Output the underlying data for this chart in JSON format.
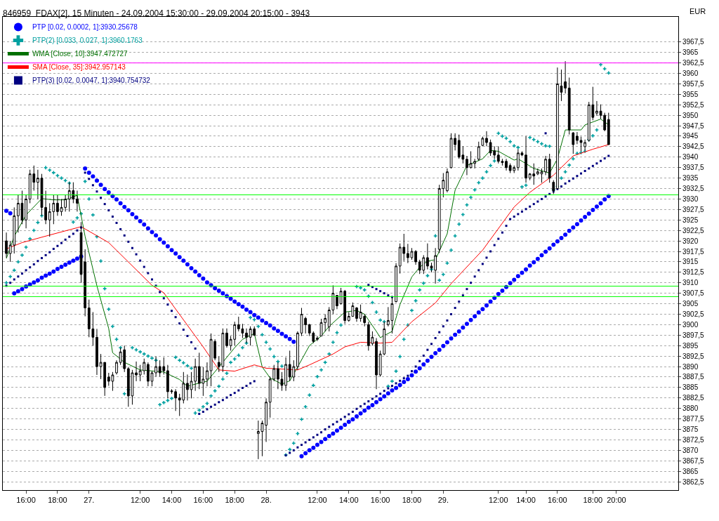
{
  "chart_data": {
    "type": "candlestick",
    "title": "846959  FDAX[2], 15 Minuten - 24.09.2004 15:30:00 - 29.09.2004 20:15:00 - 3943",
    "ylabel": "EUR",
    "color": "#000000",
    "categories": [
      null,
      null,
      null,
      null,
      null,
      "16:00",
      null,
      null,
      null,
      null,
      null,
      null,
      null,
      "18:00",
      null,
      null,
      null,
      null,
      null,
      null,
      null,
      "27.",
      null,
      null,
      null,
      null,
      null,
      null,
      null,
      null,
      null,
      null,
      null,
      null,
      "12:00",
      null,
      null,
      null,
      null,
      null,
      null,
      null,
      "14:00",
      null,
      null,
      null,
      null,
      null,
      null,
      null,
      "16:00",
      null,
      null,
      null,
      null,
      null,
      null,
      null,
      "18:00",
      null,
      null,
      null,
      null,
      null,
      null,
      null,
      "28.",
      null,
      null,
      null,
      null,
      null,
      null,
      null,
      null,
      null,
      null,
      null,
      null,
      "12:00",
      null,
      null,
      null,
      null,
      null,
      null,
      null,
      "14:00",
      null,
      null,
      null,
      null,
      null,
      null,
      null,
      "16:00",
      null,
      null,
      null,
      null,
      null,
      null,
      null,
      "18:00",
      null,
      null,
      null,
      null,
      null,
      null,
      null,
      "29.",
      null,
      null,
      null,
      null,
      null,
      null,
      null,
      null,
      null,
      null,
      null,
      null,
      null,
      "12:00",
      null,
      null,
      null,
      null,
      null,
      null,
      "14:00",
      null,
      null,
      null,
      null,
      null,
      null,
      null,
      "16:00",
      null,
      null,
      null,
      null,
      null,
      null,
      null,
      null,
      "18:00",
      null,
      null,
      null,
      null,
      null,
      "20:00",
      null,
      null,
      null,
      null,
      null,
      null,
      null,
      null,
      null,
      null,
      null,
      null,
      null,
      null,
      null
    ],
    "ohlc": [
      [
        3920,
        3922,
        3916,
        3917
      ],
      [
        3917,
        3920,
        3915,
        3919
      ],
      [
        3919,
        3928,
        3917,
        3926
      ],
      [
        3926,
        3931,
        3922,
        3929
      ],
      [
        3929,
        3932,
        3924,
        3925
      ],
      [
        3925,
        3931,
        3923,
        3930
      ],
      [
        3930,
        3937,
        3929,
        3936
      ],
      [
        3936,
        3938,
        3932,
        3934
      ],
      [
        3934,
        3937,
        3930,
        3935
      ],
      [
        3935,
        3936,
        3926,
        3928
      ],
      [
        3928,
        3932,
        3924,
        3925
      ],
      [
        3925,
        3929,
        3921,
        3927
      ],
      [
        3927,
        3931,
        3924,
        3929
      ],
      [
        3929,
        3931,
        3926,
        3927
      ],
      [
        3927,
        3930,
        3926,
        3928
      ],
      [
        3928,
        3931,
        3927,
        3930
      ],
      [
        3930,
        3934,
        3927,
        3932
      ],
      [
        3932,
        3934,
        3929,
        3930
      ],
      [
        3930,
        3932,
        3927,
        3929
      ],
      [
        3922,
        3924.5,
        3910,
        3912
      ],
      [
        3915,
        3918,
        3902,
        3904
      ],
      [
        3904,
        3906,
        3897,
        3899
      ],
      [
        3899,
        3903,
        3895,
        3897
      ],
      [
        3897,
        3899,
        3888,
        3890
      ],
      [
        3890,
        3893,
        3887,
        3891
      ],
      [
        3891,
        3891,
        3883,
        3885
      ],
      [
        3887.5,
        3888.5,
        3885.4,
        3886.5
      ],
      [
        3886.5,
        3888.7,
        3884.2,
        3888
      ],
      [
        3888.5,
        3891.5,
        3888.1,
        3891
      ],
      [
        3891,
        3894.5,
        3890.4,
        3893.5
      ],
      [
        3894,
        3895,
        3888.7,
        3889.5
      ],
      [
        3889.5,
        3889.9,
        3880.4,
        3883
      ],
      [
        3883,
        3889.2,
        3880.9,
        3888.5
      ],
      [
        3888.5,
        3891.2,
        3886.5,
        3888
      ],
      [
        3888,
        3890.4,
        3886.5,
        3889
      ],
      [
        3889,
        3891.9,
        3888.1,
        3891
      ],
      [
        3890.5,
        3891,
        3885.3,
        3886.5
      ],
      [
        3886.5,
        3888.9,
        3885.3,
        3888.5
      ],
      [
        3888.5,
        3892.4,
        3887.6,
        3890
      ],
      [
        3890,
        3891.5,
        3887.6,
        3888.5
      ],
      [
        3890,
        3892.2,
        3888.1,
        3889
      ],
      [
        3889,
        3890.4,
        3882.4,
        3884
      ],
      [
        3884.2,
        3884.6,
        3883.5,
        3884
      ],
      [
        3884,
        3884.6,
        3879.4,
        3882.5
      ],
      [
        3882.5,
        3883.5,
        3878.2,
        3882
      ],
      [
        3882,
        3888.7,
        3881.2,
        3886
      ],
      [
        3886,
        3888.1,
        3881.9,
        3884.5
      ],
      [
        3884.5,
        3888.7,
        3882.4,
        3886.5
      ],
      [
        3886.5,
        3891.9,
        3884.2,
        3890
      ],
      [
        3890,
        3893.3,
        3884.6,
        3886
      ],
      [
        3886,
        3889.9,
        3883,
        3887
      ],
      [
        3887,
        3891,
        3885.3,
        3889
      ],
      [
        3889,
        3897.9,
        3885.3,
        3896.5
      ],
      [
        3896,
        3896.5,
        3891.5,
        3892
      ],
      [
        3891,
        3892.4,
        3888.7,
        3890
      ],
      [
        3890,
        3899.1,
        3888.7,
        3898
      ],
      [
        3898,
        3899.1,
        3894.5,
        3895
      ],
      [
        3895,
        3897.3,
        3893.8,
        3896.5
      ],
      [
        3896.5,
        3900.7,
        3895,
        3900
      ],
      [
        3900,
        3901.9,
        3898.4,
        3899
      ],
      [
        3899,
        3900.2,
        3896.8,
        3898
      ],
      [
        3898,
        3899.1,
        3895.6,
        3897
      ],
      [
        3897,
        3899.6,
        3895,
        3899
      ],
      [
        3899,
        3899.6,
        3897.3,
        3897.5
      ],
      [
        3874,
        3877.1,
        3867.9,
        3874.5
      ],
      [
        3874.5,
        3877.1,
        3868.6,
        3876.5
      ],
      [
        3876,
        3882.4,
        3872,
        3881.5
      ],
      [
        3881.5,
        3887.6,
        3877.8,
        3887
      ],
      [
        3887,
        3890.4,
        3886.5,
        3889.5
      ],
      [
        3889.5,
        3891,
        3884.6,
        3887
      ],
      [
        3887,
        3888.7,
        3884.2,
        3885.5
      ],
      [
        3885.5,
        3892.2,
        3884.2,
        3890.5
      ],
      [
        3890.5,
        3893.8,
        3886.5,
        3887.5
      ],
      [
        3887.5,
        3891.5,
        3886.5,
        3890
      ],
      [
        3890,
        3898.4,
        3889.2,
        3898
      ],
      [
        3898,
        3904,
        3897.3,
        3902.5
      ],
      [
        3901.5,
        3901.9,
        3897.9,
        3900
      ],
      [
        3900,
        3900.2,
        3897.3,
        3898
      ],
      [
        3898,
        3898.4,
        3895.6,
        3896
      ],
      [
        3896.5,
        3897.3,
        3896.1,
        3896.8
      ],
      [
        3897.3,
        3901.4,
        3897.3,
        3900.5
      ],
      [
        3900.5,
        3902.5,
        3898.4,
        3901.5
      ],
      [
        3899.5,
        3904.2,
        3898.4,
        3903.5
      ],
      [
        3903.5,
        3909.4,
        3902.5,
        3907.5
      ],
      [
        3907,
        3907.1,
        3903.7,
        3904.5
      ],
      [
        3905,
        3908.8,
        3904.8,
        3908
      ],
      [
        3908,
        3908.3,
        3900.2,
        3901
      ],
      [
        3901,
        3903,
        3900.7,
        3902
      ],
      [
        3902,
        3905.3,
        3901.9,
        3904.5
      ],
      [
        3904,
        3904.2,
        3900.7,
        3901.5
      ],
      [
        3901.5,
        3904.8,
        3900.7,
        3903
      ],
      [
        3902,
        3902.5,
        3899.6,
        3900.5
      ],
      [
        3900,
        3900.7,
        3893.8,
        3895
      ],
      [
        3895.5,
        3898.4,
        3895,
        3897
      ],
      [
        3896,
        3896.8,
        3884.6,
        3888
      ],
      [
        3888,
        3893.8,
        3887.6,
        3893
      ],
      [
        3893,
        3900.7,
        3892.7,
        3899
      ],
      [
        3900,
        3904.2,
        3899.6,
        3901
      ],
      [
        3901,
        3906.5,
        3897.9,
        3905
      ],
      [
        3905.5,
        3914.7,
        3905.3,
        3914
      ],
      [
        3914,
        3919.4,
        3912.2,
        3918.5
      ],
      [
        3918.5,
        3921.7,
        3915.2,
        3917
      ],
      [
        3917,
        3919.3,
        3914.7,
        3916
      ],
      [
        3916,
        3918.3,
        3915.5,
        3917.5
      ],
      [
        3917.5,
        3917.8,
        3914.3,
        3915
      ],
      [
        3915,
        3915.5,
        3912.1,
        3913
      ],
      [
        3913,
        3916.6,
        3912.1,
        3916
      ],
      [
        3916,
        3919.4,
        3913.2,
        3914
      ],
      [
        3914,
        3914.8,
        3912.5,
        3913.5
      ],
      [
        3913,
        3918.3,
        3909.8,
        3916.5
      ],
      [
        3918,
        3933.4,
        3917.1,
        3932.5
      ],
      [
        3932.5,
        3936.2,
        3930.4,
        3934.5
      ],
      [
        3932,
        3937.3,
        3931.6,
        3936.5
      ],
      [
        3937.5,
        3945.7,
        3937.3,
        3944.5
      ],
      [
        3944.5,
        3945.7,
        3941.6,
        3943
      ],
      [
        3944,
        3945.4,
        3939.6,
        3940
      ],
      [
        3940.5,
        3942.6,
        3938.5,
        3939.5
      ],
      [
        3939.5,
        3940.3,
        3935.7,
        3937.5
      ],
      [
        3937.5,
        3941.4,
        3937.3,
        3938.5
      ],
      [
        3938.5,
        3939.6,
        3937.3,
        3939
      ],
      [
        3939.5,
        3943.7,
        3939.1,
        3942.5
      ],
      [
        3942.8,
        3944.9,
        3942.6,
        3944.5
      ],
      [
        3944.5,
        3946.2,
        3942.6,
        3943.5
      ],
      [
        3943.5,
        3944.2,
        3940.3,
        3941
      ],
      [
        3941.5,
        3942.6,
        3939.6,
        3940.5
      ],
      [
        3940.5,
        3942.6,
        3938.5,
        3939
      ],
      [
        3939,
        3939.6,
        3938,
        3938.7
      ],
      [
        3939,
        3939.6,
        3936.8,
        3937.5
      ],
      [
        3938,
        3938.5,
        3936.2,
        3936.8
      ],
      [
        3936.8,
        3938,
        3936.2,
        3937.5
      ],
      [
        3937.5,
        3941.9,
        3936.8,
        3941
      ],
      [
        3941,
        3941.4,
        3940.3,
        3940.5
      ],
      [
        3940.5,
        3945,
        3933.9,
        3935
      ],
      [
        3935,
        3936.2,
        3934.5,
        3936
      ],
      [
        3936,
        3938.5,
        3933.4,
        3935.5
      ],
      [
        3936,
        3937.3,
        3935.7,
        3936.5
      ],
      [
        3936,
        3937.3,
        3933.9,
        3936.5
      ],
      [
        3936.5,
        3940.3,
        3935.7,
        3939.5
      ],
      [
        3939.5,
        3940.8,
        3933.9,
        3935
      ],
      [
        3934,
        3934.5,
        3931.2,
        3932
      ],
      [
        3932.5,
        3961.4,
        3932.2,
        3957.5
      ],
      [
        3957,
        3960.9,
        3953.4,
        3955.5
      ],
      [
        3958,
        3962.9,
        3955.2,
        3956.5
      ],
      [
        3956.5,
        3959,
        3945.4,
        3946.5
      ],
      [
        3945.8,
        3946,
        3940.8,
        3943
      ],
      [
        3945,
        3946,
        3943.1,
        3944
      ],
      [
        3944,
        3944.9,
        3941.4,
        3943.5
      ],
      [
        3942.5,
        3944.2,
        3941.6,
        3943.5
      ],
      [
        3944,
        3953.2,
        3943.7,
        3952.5
      ],
      [
        3952.5,
        3956.8,
        3948.8,
        3949.5
      ],
      [
        3950.5,
        3953.4,
        3949.9,
        3951
      ],
      [
        3951,
        3952.6,
        3949.1,
        3950
      ],
      [
        3950,
        3950.6,
        3946.2,
        3946.5
      ],
      [
        3949,
        3950.6,
        3943,
        3943
      ],
      null,
      null,
      null,
      null,
      null,
      null,
      null,
      null,
      null,
      null,
      null,
      null,
      null,
      null,
      null,
      null,
      null
    ],
    "series": [
      {
        "name": "PTP [0.02, 0.0002, 1]:3930.25678",
        "type": "scatter",
        "marker": "circle",
        "color": "#0000ff",
        "values": [
          3927.2,
          3926.6,
          3907.5,
          3908,
          3908.5,
          3909.1,
          3909.6,
          3910.1,
          3910.6,
          3911.2,
          3911.7,
          3912.2,
          3912.7,
          3913.3,
          3913.8,
          3914.3,
          3914.8,
          3915.3,
          3915.8,
          3916.3,
          3937.3,
          3936.3,
          3935.4,
          3934.4,
          3933.4,
          3932.4,
          3931.6,
          3930.7,
          3929.9,
          3929,
          3928.1,
          3927.3,
          3926.4,
          3925.6,
          3924.7,
          3923.9,
          3923,
          3922.1,
          3921.3,
          3920.4,
          3919.6,
          3918.7,
          3917.8,
          3917,
          3916.1,
          3915.3,
          3914.4,
          3913.5,
          3912.7,
          3911.8,
          3911,
          3910.1,
          3909.4,
          3908.7,
          3908.1,
          3907.5,
          3906.8,
          3906.2,
          3905.5,
          3904.9,
          3904.3,
          3903.6,
          3903,
          3902.3,
          3901.7,
          3901,
          3900.4,
          3899.8,
          3899.1,
          3898.5,
          3897.8,
          3897.2,
          3896.6,
          3895.9,
          null,
          3868.6,
          3869.3,
          3870,
          3870.6,
          3871.3,
          3872,
          3872.7,
          3873.4,
          3874,
          3874.7,
          3875.4,
          3876.1,
          3876.8,
          3877.4,
          3878.1,
          3878.8,
          3879.5,
          3880.2,
          3880.8,
          3881.5,
          3882.2,
          3882.9,
          3883.6,
          3884.3,
          3884.9,
          3885.6,
          3886.3,
          3887,
          3887.9,
          3888.8,
          3889.6,
          3890.5,
          3891.4,
          3892.3,
          3893.2,
          3894,
          3894.9,
          3895.8,
          3896.7,
          3897.6,
          3898.4,
          3899.3,
          3900.2,
          3901.1,
          3902,
          3902.9,
          3903.7,
          3904.6,
          3905.5,
          3906.4,
          3907.3,
          3908.1,
          3909,
          3909.9,
          3910.7,
          3911.6,
          3912.4,
          3913.2,
          3914.1,
          3914.9,
          3915.7,
          3916.6,
          3917.4,
          3918.2,
          3919.1,
          3919.9,
          3920.7,
          3921.5,
          3922.4,
          3923.2,
          3924,
          3924.9,
          3925.7,
          3926.5,
          3927.4,
          3928.2,
          3929,
          3929.9,
          3930.7,
          null,
          null,
          null,
          null,
          null,
          null,
          null,
          null,
          null,
          null,
          null,
          null,
          null,
          null,
          null,
          null,
          null
        ]
      },
      {
        "name": "PTP(2) [0.033, 0.027, 1]:3960.1763",
        "type": "scatter",
        "marker": "cross",
        "color": "#00a0a0",
        "values": [
          3910,
          3911.5,
          3913,
          3915,
          3916.6,
          3918.5,
          3920.5,
          3922.5,
          3924.4,
          3926,
          3937.5,
          3936.9,
          3936.3,
          3935.6,
          3935,
          3934.4,
          3933.8,
          3924.5,
          3925.5,
          3926.5,
          3934.2,
          3930,
          3926.2,
          3921,
          3915.2,
          3908.6,
          3903.7,
          3899.6,
          3896.5,
          3894.5,
          3883.5,
          3884.5,
          3894.5,
          3894,
          3893.5,
          3893,
          3892.5,
          3892,
          3891.5,
          3880.9,
          3881.4,
          3881.9,
          3882.4,
          3892.2,
          3891.5,
          3890.9,
          3890.2,
          3889.6,
          3878.9,
          3879.6,
          3880.4,
          3881.2,
          3883,
          3884.2,
          3885.3,
          3887,
          3888.4,
          3891,
          3891.8,
          3892.7,
          3894.5,
          3895.6,
          3901.7,
          3901.2,
          3899.6,
          3897.6,
          3895.8,
          3894.2,
          3892.4,
          3891.2,
          3890.1,
          3868.9,
          3870.2,
          3871.7,
          3874,
          3877.4,
          3880.4,
          3883.2,
          3885.5,
          3887.6,
          3889.2,
          3891,
          3893,
          3895.8,
          3898.1,
          3899.9,
          null,
          null,
          null,
          3909.1,
          3908.8,
          3908.3,
          3906.8,
          3905.3,
          3903,
          3901.1,
          3900.7,
          3885.3,
          3886.5,
          3888.9,
          3892.4,
          3896.5,
          3899.9,
          3903.4,
          3905.7,
          3908.3,
          3909.9,
          3911.7,
          3913.2,
          3921.2,
          3910.6,
          3912,
          3914.7,
          3917.8,
          3921.2,
          3924,
          3926.3,
          3928.6,
          3930.4,
          3932.2,
          3933.9,
          3935,
          3936.5,
          3938,
          3939.1,
          3945.7,
          3945,
          3944.5,
          3943.7,
          3942.7,
          3942.3,
          3932.9,
          3933.3,
          3944.7,
          3944.2,
          3943.7,
          3943.2,
          3942.7,
          3942.6,
          3932.2,
          3933,
          3935,
          3936.5,
          3938.1,
          3939.6,
          3940.9,
          3941.1,
          3941.4,
          3944.2,
          3945.1,
          3946.5,
          3962.1,
          3961.1,
          3960.1,
          null,
          null,
          null,
          null,
          null,
          null,
          null,
          null,
          null,
          null,
          null,
          null,
          null,
          null,
          null,
          null,
          null
        ]
      },
      {
        "name": "WMA [Close, 10]:3947.472727",
        "type": "line",
        "color": "#007000",
        "values": [
          3915.8,
          null,
          3921.1,
          null,
          null,
          3926.2,
          null,
          null,
          null,
          3930.1,
          null,
          null,
          3929.8,
          null,
          null,
          3929.8,
          null,
          null,
          3930.9,
          null,
          3921.1,
          null,
          null,
          3909.3,
          null,
          null,
          3899.1,
          3893.3,
          null,
          null,
          3891,
          null,
          null,
          null,
          3889.2,
          null,
          null,
          null,
          null,
          null,
          3888.7,
          null,
          null,
          null,
          3886.9,
          null,
          3885.3,
          null,
          3885.8,
          null,
          null,
          3886.5,
          null,
          null,
          3889.9,
          null,
          null,
          null,
          3894.5,
          null,
          3896.5,
          null,
          null,
          3897.9,
          null,
          3889.9,
          null,
          3887.3,
          null,
          null,
          3885.8,
          null,
          3886.6,
          null,
          3889.9,
          null,
          null,
          3895,
          null,
          null,
          3897.3,
          null,
          3899.6,
          null,
          null,
          null,
          3903,
          null,
          null,
          3903.4,
          null,
          3902.5,
          null,
          null,
          3898.4,
          3896.9,
          null,
          null,
          3898.4,
          null,
          3904.8,
          null,
          null,
          3911.4,
          null,
          3913.7,
          null,
          3915.2,
          null,
          3915.5,
          null,
          null,
          3921.7,
          null,
          3932.1,
          null,
          null,
          3938,
          null,
          null,
          null,
          3939.6,
          null,
          3941.6,
          null,
          3941.4,
          null,
          null,
          null,
          3939.3,
          3939.6,
          null,
          null,
          null,
          3937.3,
          null,
          null,
          null,
          3936.2,
          null,
          3939.6,
          null,
          3946.5,
          null,
          null,
          null,
          3946.5,
          3947.7,
          null,
          null,
          null,
          3949.1,
          null,
          3947.7,
          null,
          null,
          null,
          null,
          null,
          null,
          null,
          null,
          null,
          null,
          null,
          null,
          null,
          null,
          null,
          null,
          null
        ]
      },
      {
        "name": "SMA [Close, 35]:3942.957143",
        "type": "line",
        "color": "#ff0000",
        "values": [
          3918.1,
          null,
          null,
          null,
          3919.6,
          null,
          null,
          null,
          null,
          null,
          null,
          3921.4,
          null,
          null,
          null,
          null,
          null,
          null,
          null,
          3923.4,
          null,
          null,
          null,
          null,
          null,
          null,
          3919.6,
          null,
          null,
          null,
          null,
          null,
          null,
          null,
          null,
          null,
          null,
          3909.4,
          null,
          null,
          3907.6,
          null,
          null,
          null,
          null,
          null,
          null,
          null,
          null,
          null,
          3894.7,
          null,
          null,
          null,
          3889.2,
          null,
          null,
          null,
          3888.9,
          null,
          null,
          null,
          null,
          3890.4,
          null,
          null,
          3889.6,
          null,
          null,
          null,
          null,
          null,
          null,
          null,
          3889.2,
          null,
          null,
          3890.4,
          null,
          null,
          null,
          null,
          null,
          3893,
          null,
          null,
          3894.7,
          null,
          null,
          null,
          3895.8,
          null,
          null,
          null,
          null,
          3895.6,
          null,
          null,
          3895.8,
          null,
          null,
          null,
          null,
          3900.7,
          null,
          null,
          null,
          null,
          null,
          3905.2,
          null,
          null,
          null,
          3909.8,
          null,
          null,
          null,
          null,
          null,
          null,
          null,
          3917.8,
          null,
          null,
          null,
          null,
          null,
          null,
          null,
          3928.1,
          null,
          null,
          null,
          3931.6,
          null,
          null,
          null,
          null,
          null,
          3935.7,
          null,
          null,
          null,
          null,
          3940.3,
          null,
          null,
          null,
          null,
          3941.9,
          null,
          null,
          null,
          3943,
          null,
          null,
          null,
          null,
          null,
          null,
          null,
          null,
          null,
          null,
          null,
          null,
          null,
          null,
          null,
          null,
          null
        ]
      },
      {
        "name": "PTP(3) [0.02, 0.0047, 1]:3940.754732",
        "type": "scatter",
        "marker": "square",
        "color": "#000080",
        "values": [
          3909.3,
          3910,
          3910.8,
          3911.5,
          3912.2,
          3913,
          3913.7,
          3914.4,
          3915.2,
          3915.9,
          3916.6,
          3917.3,
          3918.1,
          3918.8,
          3919.5,
          3920.3,
          3921,
          3921.7,
          3922.5,
          3923.2,
          3936.3,
          3934.8,
          3933.3,
          3931.8,
          3930.3,
          3928.8,
          3927.3,
          3925.8,
          3924.3,
          3922.8,
          3921.3,
          3919.8,
          3918.3,
          3916.8,
          3915.3,
          3913.8,
          3912.3,
          3910.8,
          3909.3,
          3907.8,
          3906.3,
          3904.8,
          3903.3,
          3901.8,
          3900.3,
          3898.8,
          3897.3,
          3895.8,
          3894.3,
          3878.7,
          3879.2,
          3879.8,
          3880.4,
          3880.9,
          3881.5,
          3882,
          3882.6,
          3883.2,
          3883.7,
          3884.3,
          3884.9,
          3885.4,
          3886,
          3886.5,
          null,
          null,
          null,
          null,
          null,
          null,
          null,
          3868.8,
          3869.4,
          3870,
          3870.7,
          3871.3,
          3871.9,
          3872.5,
          3873.1,
          3873.7,
          3874.3,
          3875,
          3875.6,
          3876.2,
          3876.8,
          3877.4,
          3878,
          3878.6,
          3879.2,
          3879.9,
          3880.5,
          3881.1,
          3881.7,
          3882.3,
          3882.9,
          3883.5,
          3884.2,
          3884.8,
          3885.4,
          3886,
          3886.6,
          3887.2,
          3887.8,
          3888.9,
          3890,
          3891.3,
          3892.6,
          3894,
          3895.4,
          3896.8,
          3898.2,
          3899.6,
          3901,
          3902.5,
          3904,
          3905.5,
          3907,
          3908.5,
          3910,
          3911.5,
          3913,
          3914.5,
          3916,
          3917.5,
          3919,
          3920.5,
          3922,
          3923.6,
          3925.2,
          3925.8,
          3926.4,
          3927,
          3927.6,
          3928.2,
          3928.8,
          3929.4,
          3930,
          3930.6,
          3931.2,
          3931.8,
          3932.4,
          3933,
          3933.7,
          3934.3,
          3934.9,
          3935.5,
          3936.1,
          3936.7,
          3937.3,
          3937.9,
          3938.5,
          3939.1,
          3939.7,
          3940.3,
          null,
          null,
          null,
          null,
          null,
          null,
          null,
          null,
          null,
          null,
          null,
          null,
          null,
          null,
          null,
          null,
          null
        ]
      },
      {
        "type": "scatter",
        "marker": "square",
        "color": "#000080",
        "values": [
          null,
          null,
          null,
          null,
          null,
          null,
          null,
          null,
          null,
          null,
          null,
          null,
          null,
          null,
          null,
          null,
          null,
          null,
          null,
          null,
          null,
          null,
          null,
          null,
          null,
          null,
          null,
          null,
          null,
          null,
          null,
          null,
          null,
          null,
          null,
          null,
          null,
          null,
          null,
          null,
          null,
          null,
          null,
          null,
          null,
          null,
          null,
          null,
          null,
          null,
          null,
          null,
          null,
          null,
          null,
          null,
          null,
          null,
          null,
          null,
          null,
          null,
          null,
          null,
          null,
          null,
          null,
          null,
          null,
          null,
          null,
          null,
          null,
          null,
          null,
          null,
          null,
          null,
          null,
          null,
          null,
          null,
          null,
          null,
          null,
          null,
          null,
          null,
          null,
          null,
          null,
          null,
          3909.5,
          3909,
          3908.5,
          3908,
          3907.5,
          3907,
          3906.6,
          null,
          null,
          null,
          null,
          null,
          null,
          null,
          null,
          null,
          null,
          null,
          null,
          null,
          null,
          null,
          null,
          null,
          null,
          null,
          null,
          null,
          null,
          null,
          null,
          null,
          null,
          null,
          null,
          null,
          null,
          null,
          null,
          null,
          null,
          null,
          null,
          null,
          null,
          3945.7,
          null,
          null,
          null,
          null,
          null,
          null,
          null,
          null,
          null,
          null,
          null,
          null,
          null,
          null,
          null,
          null,
          null,
          null,
          null,
          null,
          null,
          null,
          null,
          null,
          null,
          null,
          null,
          null,
          null,
          null,
          null,
          null,
          null
        ]
      }
    ],
    "ref_lines": [
      {
        "axis": "y",
        "value": 3962.5,
        "color": "#ff00ff"
      },
      {
        "axis": "y",
        "value": 3931,
        "color": "#00ff00"
      },
      {
        "axis": "y",
        "value": 3909.2,
        "color": "#00ff00"
      },
      {
        "axis": "y",
        "value": 3906.7,
        "color": "#00ff00"
      }
    ],
    "ylim": [
      3860.5,
      3973.5
    ],
    "yticks": [
      {
        "value": 3862.5,
        "label": "3862,5"
      },
      3865,
      {
        "value": 3867.5,
        "label": "3867,5"
      },
      3870,
      {
        "value": 3872.5,
        "label": "3872,5"
      },
      3875,
      {
        "value": 3877.5,
        "label": "3877,5"
      },
      3880,
      {
        "value": 3882.5,
        "label": "3882,5"
      },
      3885,
      {
        "value": 3887.5,
        "label": "3887,5"
      },
      3890,
      {
        "value": 3892.5,
        "label": "3892,5"
      },
      3895,
      {
        "value": 3897.5,
        "label": "3897,5"
      },
      3900,
      {
        "value": 3902.5,
        "label": "3902,5"
      },
      3905,
      {
        "value": 3907.5,
        "label": "3907,5"
      },
      3910,
      {
        "value": 3912.5,
        "label": "3912,5"
      },
      3915,
      {
        "value": 3917.5,
        "label": "3917,5"
      },
      3920,
      {
        "value": 3922.5,
        "label": "3922,5"
      },
      3925,
      {
        "value": 3927.5,
        "label": "3927,5"
      },
      3930,
      {
        "value": 3932.5,
        "label": "3932,5"
      },
      3935,
      {
        "value": 3937.5,
        "label": "3937,5"
      },
      3940,
      {
        "value": 3942.5,
        "label": "3942,5"
      },
      3945,
      {
        "value": 3947.5,
        "label": "3947,5"
      },
      3950,
      {
        "value": 3952.5,
        "label": "3952,5"
      },
      3955,
      {
        "value": 3957.5,
        "label": "3957,5"
      },
      3960,
      {
        "value": 3962.5,
        "label": "3962,5"
      },
      3965,
      {
        "value": 3967.5,
        "label": "3967,5"
      }
    ],
    "grid": "y",
    "legend": "top left"
  }
}
